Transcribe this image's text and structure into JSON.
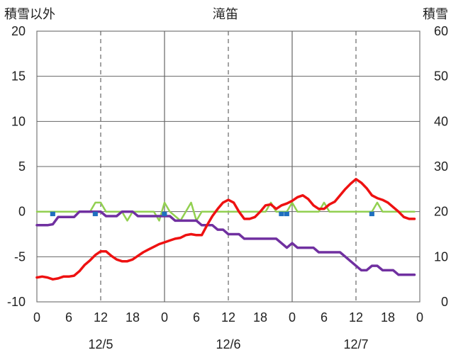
{
  "title": "滝笛",
  "left_axis_label": "積雪以外",
  "right_axis_label": "積雪",
  "colors": {
    "temperature": "#ee1111",
    "purple_series": "#7030a0",
    "green_series": "#92d050",
    "blue_bars": "#1f6fbf",
    "grid": "#666666"
  },
  "chart_data": {
    "type": "line",
    "y_left": {
      "min": -10,
      "max": 20,
      "step": 5,
      "ticks": [
        "20",
        "15",
        "10",
        "5",
        "0",
        "-5",
        "-10"
      ]
    },
    "y_right": {
      "min": 0,
      "max": 60,
      "step": 10,
      "ticks": [
        "60",
        "50",
        "40",
        "30",
        "20",
        "10",
        "0"
      ]
    },
    "x": {
      "hours_total": 72,
      "hour_ticks": [
        "0",
        "6",
        "12",
        "18",
        "0",
        "6",
        "12",
        "18",
        "0",
        "6",
        "12",
        "18",
        "0"
      ],
      "date_labels": [
        {
          "text": "12/5",
          "hour": 12
        },
        {
          "text": "12/6",
          "hour": 36
        },
        {
          "text": "12/7",
          "hour": 60
        }
      ],
      "midnight_hours": [
        24,
        48
      ],
      "dashed_hours": [
        12,
        36,
        60
      ]
    },
    "series": [
      {
        "key": "temperature",
        "values": [
          [
            0,
            -7.3
          ],
          [
            1,
            -7.2
          ],
          [
            2,
            -7.3
          ],
          [
            3,
            -7.5
          ],
          [
            4,
            -7.4
          ],
          [
            5,
            -7.2
          ],
          [
            6,
            -7.2
          ],
          [
            7,
            -7.1
          ],
          [
            8,
            -6.6
          ],
          [
            9,
            -5.9
          ],
          [
            10,
            -5.4
          ],
          [
            11,
            -4.8
          ],
          [
            12,
            -4.4
          ],
          [
            13,
            -4.4
          ],
          [
            14,
            -4.9
          ],
          [
            15,
            -5.3
          ],
          [
            16,
            -5.5
          ],
          [
            17,
            -5.5
          ],
          [
            18,
            -5.3
          ],
          [
            19,
            -4.9
          ],
          [
            20,
            -4.5
          ],
          [
            21,
            -4.2
          ],
          [
            22,
            -3.9
          ],
          [
            23,
            -3.6
          ],
          [
            24,
            -3.4
          ],
          [
            25,
            -3.2
          ],
          [
            26,
            -3.0
          ],
          [
            27,
            -2.9
          ],
          [
            28,
            -2.6
          ],
          [
            29,
            -2.5
          ],
          [
            30,
            -2.6
          ],
          [
            31,
            -2.6
          ],
          [
            32,
            -1.5
          ],
          [
            33,
            -0.5
          ],
          [
            34,
            0.3
          ],
          [
            35,
            1.0
          ],
          [
            36,
            1.3
          ],
          [
            37,
            1.0
          ],
          [
            38,
            0.0
          ],
          [
            39,
            -0.8
          ],
          [
            40,
            -0.8
          ],
          [
            41,
            -0.6
          ],
          [
            42,
            0.0
          ],
          [
            43,
            0.7
          ],
          [
            44,
            0.8
          ],
          [
            45,
            0.3
          ],
          [
            46,
            0.7
          ],
          [
            47,
            0.9
          ],
          [
            48,
            1.2
          ],
          [
            49,
            1.6
          ],
          [
            50,
            1.8
          ],
          [
            51,
            1.4
          ],
          [
            52,
            0.7
          ],
          [
            53,
            0.3
          ],
          [
            54,
            0.3
          ],
          [
            55,
            0.8
          ],
          [
            56,
            1.1
          ],
          [
            57,
            1.8
          ],
          [
            58,
            2.5
          ],
          [
            59,
            3.1
          ],
          [
            60,
            3.6
          ],
          [
            61,
            3.2
          ],
          [
            62,
            2.6
          ],
          [
            63,
            1.8
          ],
          [
            64,
            1.5
          ],
          [
            65,
            1.3
          ],
          [
            66,
            1.0
          ],
          [
            67,
            0.5
          ],
          [
            68,
            0.0
          ],
          [
            69,
            -0.6
          ],
          [
            70,
            -0.8
          ],
          [
            71,
            -0.8
          ]
        ]
      },
      {
        "key": "purple_series",
        "values": [
          [
            0,
            -1.5
          ],
          [
            1,
            -1.5
          ],
          [
            2,
            -1.5
          ],
          [
            3,
            -1.4
          ],
          [
            4,
            -0.6
          ],
          [
            5,
            -0.6
          ],
          [
            6,
            -0.6
          ],
          [
            7,
            -0.6
          ],
          [
            8,
            0.0
          ],
          [
            9,
            0.0
          ],
          [
            10,
            0.0
          ],
          [
            11,
            0.0
          ],
          [
            12,
            0.0
          ],
          [
            13,
            -0.5
          ],
          [
            14,
            -0.5
          ],
          [
            15,
            -0.5
          ],
          [
            16,
            0.0
          ],
          [
            17,
            0.0
          ],
          [
            18,
            0.0
          ],
          [
            19,
            -0.5
          ],
          [
            20,
            -0.5
          ],
          [
            21,
            -0.5
          ],
          [
            22,
            -0.5
          ],
          [
            23,
            -0.5
          ],
          [
            24,
            -0.5
          ],
          [
            25,
            -0.5
          ],
          [
            26,
            -1.0
          ],
          [
            27,
            -1.0
          ],
          [
            28,
            -1.0
          ],
          [
            29,
            -1.0
          ],
          [
            30,
            -1.0
          ],
          [
            31,
            -1.5
          ],
          [
            32,
            -1.5
          ],
          [
            33,
            -1.5
          ],
          [
            34,
            -2.0
          ],
          [
            35,
            -2.0
          ],
          [
            36,
            -2.5
          ],
          [
            37,
            -2.5
          ],
          [
            38,
            -2.5
          ],
          [
            39,
            -3.0
          ],
          [
            40,
            -3.0
          ],
          [
            41,
            -3.0
          ],
          [
            42,
            -3.0
          ],
          [
            43,
            -3.0
          ],
          [
            44,
            -3.0
          ],
          [
            45,
            -3.0
          ],
          [
            46,
            -3.5
          ],
          [
            47,
            -4.0
          ],
          [
            48,
            -3.5
          ],
          [
            49,
            -4.0
          ],
          [
            50,
            -4.0
          ],
          [
            51,
            -4.0
          ],
          [
            52,
            -4.0
          ],
          [
            53,
            -4.5
          ],
          [
            54,
            -4.5
          ],
          [
            55,
            -4.5
          ],
          [
            56,
            -4.5
          ],
          [
            57,
            -4.5
          ],
          [
            58,
            -5.0
          ],
          [
            59,
            -5.5
          ],
          [
            60,
            -6.0
          ],
          [
            61,
            -6.5
          ],
          [
            62,
            -6.5
          ],
          [
            63,
            -6.0
          ],
          [
            64,
            -6.0
          ],
          [
            65,
            -6.5
          ],
          [
            66,
            -6.5
          ],
          [
            67,
            -6.5
          ],
          [
            68,
            -7.0
          ],
          [
            69,
            -7.0
          ],
          [
            70,
            -7.0
          ],
          [
            71,
            -7.0
          ]
        ]
      },
      {
        "key": "green_series",
        "values": [
          [
            0,
            0
          ],
          [
            10,
            0
          ],
          [
            11,
            1.0
          ],
          [
            12,
            1.0
          ],
          [
            13,
            0
          ],
          [
            16,
            0
          ],
          [
            17,
            -1.0
          ],
          [
            18,
            0
          ],
          [
            22,
            0
          ],
          [
            23,
            -1.0
          ],
          [
            24,
            1.0
          ],
          [
            25,
            0
          ],
          [
            27,
            -1.0
          ],
          [
            28,
            0
          ],
          [
            29,
            1.0
          ],
          [
            30,
            -1.0
          ],
          [
            31,
            0
          ],
          [
            43,
            0
          ],
          [
            44,
            1.0
          ],
          [
            45,
            0
          ],
          [
            47,
            0
          ],
          [
            48,
            1.0
          ],
          [
            49,
            0
          ],
          [
            53,
            0
          ],
          [
            54,
            1.0
          ],
          [
            55,
            0
          ],
          [
            63,
            0
          ],
          [
            64,
            1.0
          ],
          [
            65,
            0
          ],
          [
            71,
            0
          ]
        ]
      }
    ],
    "bars": {
      "key": "blue_bars",
      "values": [
        [
          3,
          -0.5
        ],
        [
          11,
          -0.5
        ],
        [
          24,
          -0.5
        ],
        [
          46,
          -0.5
        ],
        [
          47,
          -0.5
        ],
        [
          63,
          -0.5
        ]
      ]
    }
  }
}
